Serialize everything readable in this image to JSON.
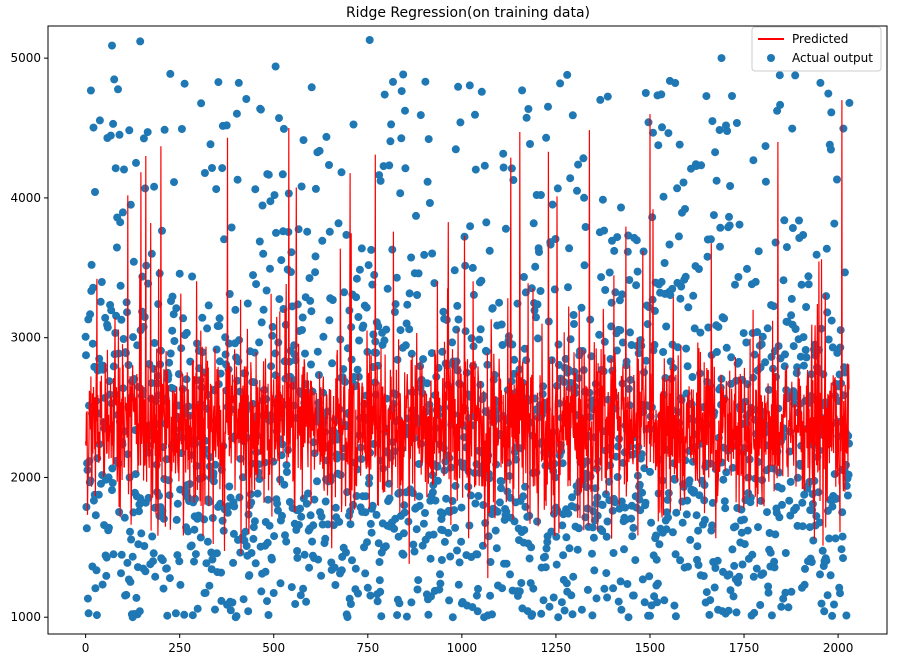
{
  "chart_data": {
    "type": "scatter",
    "title": "Ridge Regression(on training data)",
    "xlabel": "",
    "ylabel": "",
    "xlim": [
      -100,
      2130
    ],
    "ylim": [
      880,
      5230
    ],
    "x_ticks": [
      0,
      250,
      500,
      750,
      1000,
      1250,
      1500,
      1750,
      2000
    ],
    "y_ticks": [
      1000,
      2000,
      3000,
      4000,
      5000
    ],
    "x_tick_labels": [
      "0",
      "250",
      "500",
      "750",
      "1000",
      "1250",
      "1500",
      "1750",
      "2000"
    ],
    "y_tick_labels": [
      "1000",
      "2000",
      "3000",
      "4000",
      "5000"
    ],
    "n_points": 2030,
    "legend": {
      "placement": "top-right",
      "entries": [
        "Predicted",
        "Actual output"
      ]
    },
    "series": [
      {
        "name": "Predicted",
        "kind": "line",
        "color": "#ff0000",
        "mean": 2350,
        "spread_sd": 300,
        "range": [
          1280,
          4700
        ],
        "sample_peaks": [
          {
            "x": 160,
            "y": 4300
          },
          {
            "x": 200,
            "y": 4370
          },
          {
            "x": 540,
            "y": 4500
          },
          {
            "x": 770,
            "y": 4310
          },
          {
            "x": 1230,
            "y": 4330
          },
          {
            "x": 1500,
            "y": 4600
          },
          {
            "x": 1840,
            "y": 4400
          },
          {
            "x": 2010,
            "y": 4700
          }
        ]
      },
      {
        "name": "Actual output",
        "kind": "scatter",
        "color": "#1f77b4",
        "range": [
          1000,
          5130
        ],
        "sample_points": [
          {
            "x": 70,
            "y": 5090
          },
          {
            "x": 145,
            "y": 5120
          },
          {
            "x": 505,
            "y": 4940
          },
          {
            "x": 755,
            "y": 5130
          },
          {
            "x": 1690,
            "y": 5000
          },
          {
            "x": 1280,
            "y": 4880
          },
          {
            "x": 2030,
            "y": 4680
          },
          {
            "x": 125,
            "y": 1000
          },
          {
            "x": 1080,
            "y": 1020
          },
          {
            "x": 1500,
            "y": 1010
          }
        ]
      }
    ]
  },
  "colors": {
    "line": "#ff0000",
    "points": "#1f77b4"
  }
}
